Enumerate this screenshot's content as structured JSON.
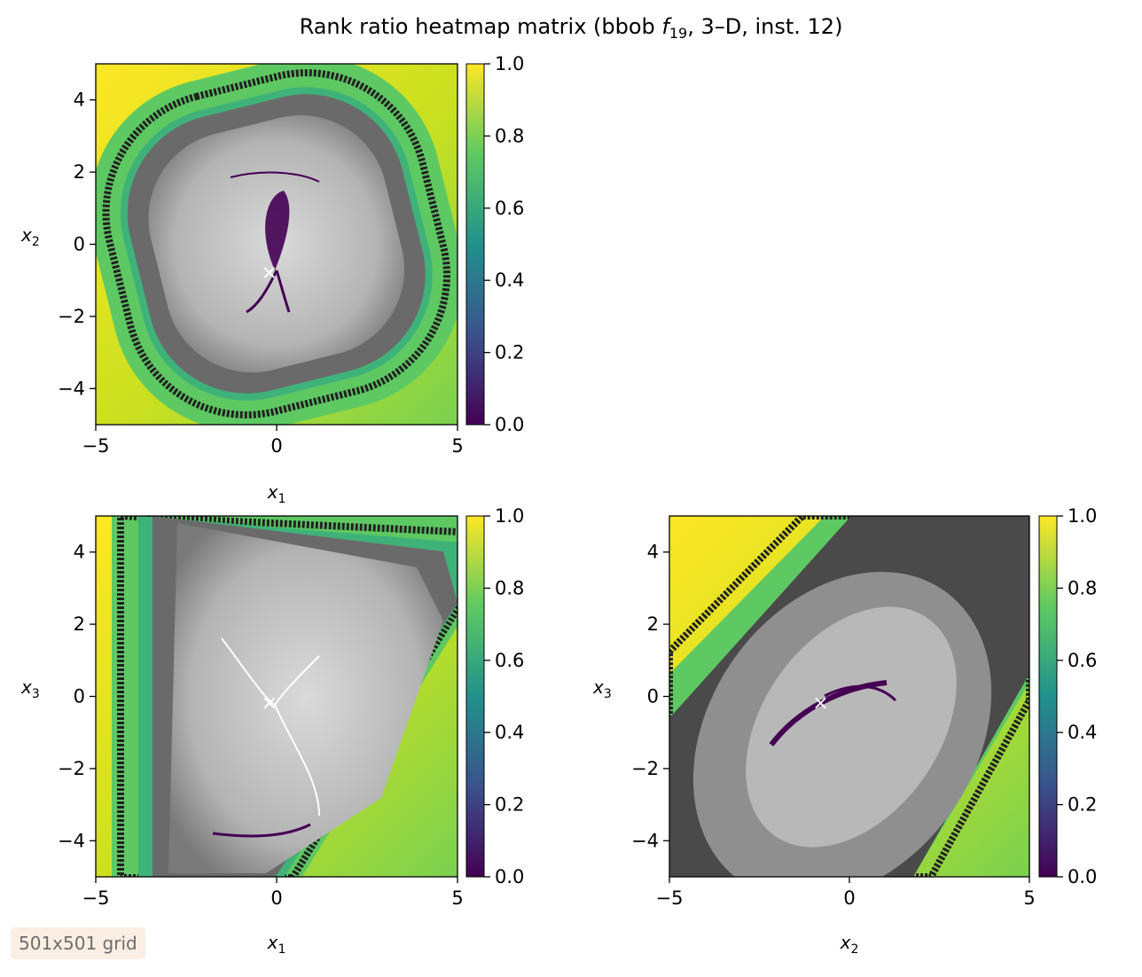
{
  "title": {
    "prefix": "Rank ratio heatmap matrix (bbob ",
    "fname": "f",
    "fsub": "19",
    "suffix": ", 3–D, inst. 12)"
  },
  "badge": "501x501 grid",
  "colors": {
    "viridis": [
      "#440154",
      "#3b528b",
      "#21918c",
      "#5ec962",
      "#fde725"
    ],
    "gray_dark": "#5f5f5f",
    "gray_light": "#d2d2d2",
    "band_black": "#222222",
    "marker": "#ffffff"
  },
  "chart_data": [
    {
      "type": "heatmap",
      "panel": "x1-x2",
      "xlabel": "x",
      "xsub": "1",
      "ylabel": "x",
      "ysub": "2",
      "xlim": [
        -5,
        5
      ],
      "ylim": [
        -5,
        5
      ],
      "xticks": [
        -5,
        0,
        5
      ],
      "xtick_labels": [
        "−5",
        "0",
        "5"
      ],
      "yticks": [
        -4,
        -2,
        0,
        2,
        4
      ],
      "ytick_labels": [
        "−4",
        "−2",
        "0",
        "2",
        "4"
      ],
      "optimum": [
        -0.2,
        -0.8
      ],
      "colorbar": {
        "min": 0.0,
        "max": 1.0,
        "ticks": [
          0.0,
          0.2,
          0.4,
          0.6,
          0.8,
          1.0
        ],
        "tick_labels": [
          "0.0",
          "0.2",
          "0.4",
          "0.6",
          "0.8",
          "1.0"
        ],
        "colormap": "viridis"
      }
    },
    {
      "type": "heatmap",
      "panel": "x1-x3",
      "xlabel": "x",
      "xsub": "1",
      "ylabel": "x",
      "ysub": "3",
      "xlim": [
        -5,
        5
      ],
      "ylim": [
        -5,
        5
      ],
      "xticks": [
        -5,
        0,
        5
      ],
      "xtick_labels": [
        "−5",
        "0",
        "5"
      ],
      "yticks": [
        -4,
        -2,
        0,
        2,
        4
      ],
      "ytick_labels": [
        "−4",
        "−2",
        "0",
        "2",
        "4"
      ],
      "optimum": [
        -0.2,
        -0.2
      ],
      "colorbar": {
        "min": 0.0,
        "max": 1.0,
        "ticks": [
          0.0,
          0.2,
          0.4,
          0.6,
          0.8,
          1.0
        ],
        "tick_labels": [
          "0.0",
          "0.2",
          "0.4",
          "0.6",
          "0.8",
          "1.0"
        ],
        "colormap": "viridis"
      }
    },
    {
      "type": "heatmap",
      "panel": "x2-x3",
      "xlabel": "x",
      "xsub": "2",
      "ylabel": "x",
      "ysub": "3",
      "xlim": [
        -5,
        5
      ],
      "ylim": [
        -5,
        5
      ],
      "xticks": [
        -5,
        0,
        5
      ],
      "xtick_labels": [
        "−5",
        "0",
        "5"
      ],
      "yticks": [
        -4,
        -2,
        0,
        2,
        4
      ],
      "ytick_labels": [
        "−4",
        "−2",
        "0",
        "2",
        "4"
      ],
      "optimum": [
        -0.8,
        -0.2
      ],
      "colorbar": {
        "min": 0.0,
        "max": 1.0,
        "ticks": [
          0.0,
          0.2,
          0.4,
          0.6,
          0.8,
          1.0
        ],
        "tick_labels": [
          "0.0",
          "0.2",
          "0.4",
          "0.6",
          "0.8",
          "1.0"
        ],
        "colormap": "viridis"
      }
    }
  ]
}
